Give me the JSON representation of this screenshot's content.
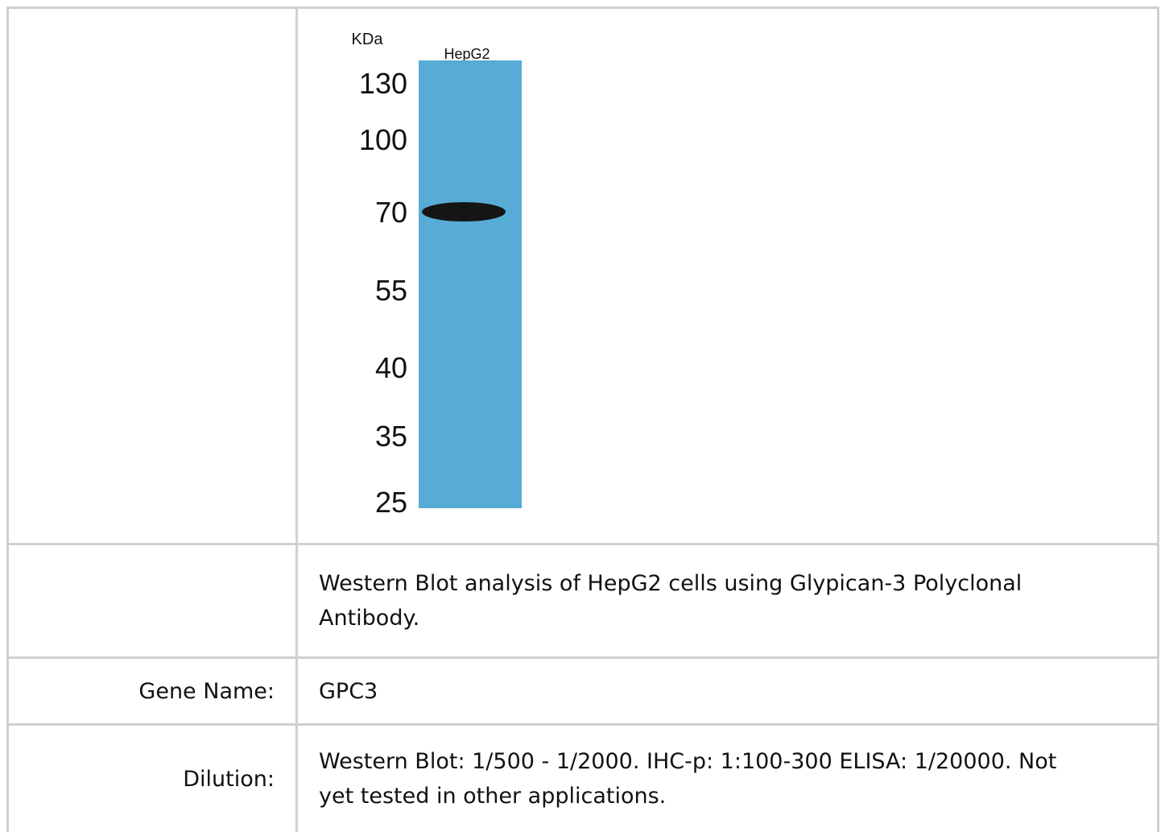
{
  "figure": {
    "unit_label": "KDa",
    "lane_label": "HepG2",
    "markers": [
      "130",
      "100",
      "70",
      "55",
      "40",
      "35",
      "25"
    ]
  },
  "table": {
    "rows": [
      [
        "",
        "Western Blot analysis of HepG2 cells using Glypican-3 Polyclonal Antibody."
      ],
      [
        "Gene Name:",
        "GPC3"
      ],
      [
        "Dilution:",
        "Western Blot: 1/500 - 1/2000. IHC-p: 1:100-300 ELISA: 1/20000. Not yet tested in other applications."
      ]
    ]
  }
}
